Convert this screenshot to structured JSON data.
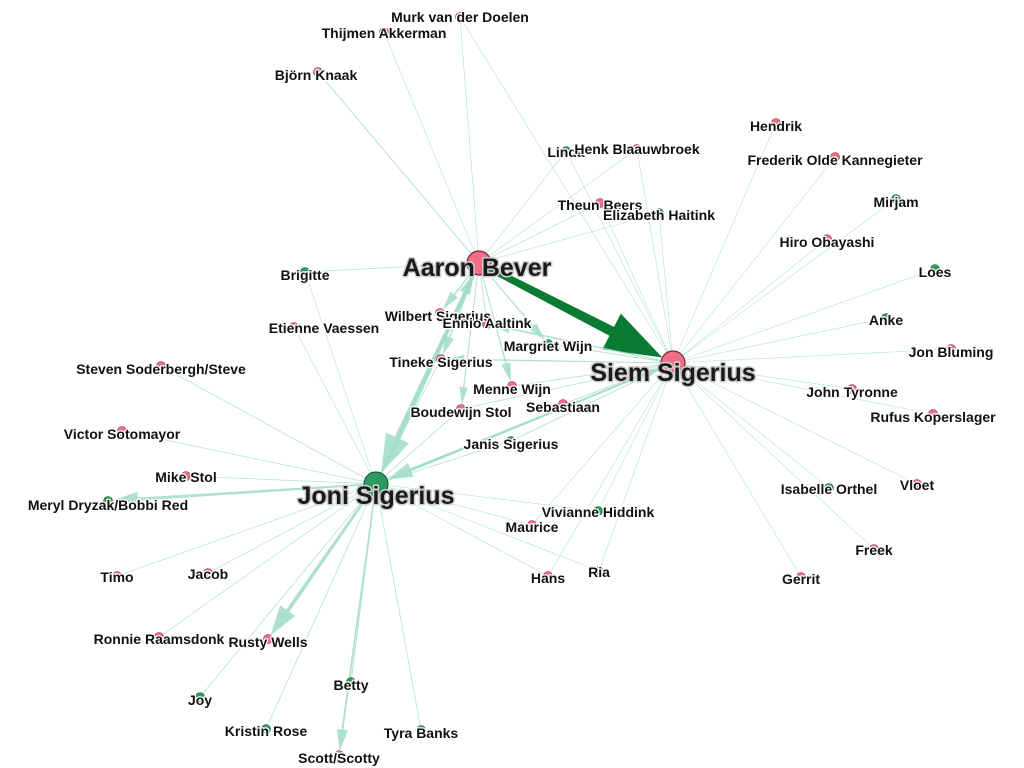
{
  "colors": {
    "female": "#ef6f86",
    "male": "#2e9b5e",
    "edge_light": "#9fdcc4",
    "edge_dark": "#0a7a34",
    "node_stroke": "#7a2a3a"
  },
  "nodes": [
    {
      "id": "siem",
      "label": "Siem Sigerius",
      "group": "female",
      "hub": true
    },
    {
      "id": "joni",
      "label": "Joni Sigerius",
      "group": "male",
      "hub": true
    },
    {
      "id": "aaron",
      "label": "Aaron Bever",
      "group": "female",
      "hub": true
    },
    {
      "id": "murk",
      "label": "Murk van der Doelen",
      "group": "female"
    },
    {
      "id": "thijmen",
      "label": "Thijmen Akkerman",
      "group": "female"
    },
    {
      "id": "bjorn",
      "label": "Björn Knaak",
      "group": "female"
    },
    {
      "id": "linda",
      "label": "Linda",
      "group": "male"
    },
    {
      "id": "henk",
      "label": "Henk Blaauwbroek",
      "group": "female"
    },
    {
      "id": "hendrik",
      "label": "Hendrik",
      "group": "female"
    },
    {
      "id": "frederik",
      "label": "Frederik Olde Kannegieter",
      "group": "female"
    },
    {
      "id": "theun",
      "label": "Theun Beers",
      "group": "female"
    },
    {
      "id": "elizabeth",
      "label": "Elizabeth Haitink",
      "group": "male"
    },
    {
      "id": "mirjam",
      "label": "Mirjam",
      "group": "male"
    },
    {
      "id": "hiro",
      "label": "Hiro Obayashi",
      "group": "female"
    },
    {
      "id": "loes",
      "label": "Loes",
      "group": "male"
    },
    {
      "id": "brigitte",
      "label": "Brigitte",
      "group": "male"
    },
    {
      "id": "etienne",
      "label": "Etienne Vaessen",
      "group": "female"
    },
    {
      "id": "wilbert",
      "label": "Wilbert Sigerius",
      "group": "female"
    },
    {
      "id": "ennio",
      "label": "Ennio Aaltink",
      "group": "female"
    },
    {
      "id": "anke",
      "label": "Anke",
      "group": "male"
    },
    {
      "id": "margriet",
      "label": "Margriet Wijn",
      "group": "male"
    },
    {
      "id": "tineke",
      "label": "Tineke Sigerius",
      "group": "female"
    },
    {
      "id": "jonbluming",
      "label": "Jon Bluming",
      "group": "female"
    },
    {
      "id": "steven",
      "label": "Steven Soderbergh/Steve",
      "group": "female"
    },
    {
      "id": "menne",
      "label": "Menne Wijn",
      "group": "female"
    },
    {
      "id": "johntyronne",
      "label": "John Tyronne",
      "group": "female"
    },
    {
      "id": "boudewijn",
      "label": "Boudewijn Stol",
      "group": "female"
    },
    {
      "id": "sebastiaan",
      "label": "Sebastiaan",
      "group": "female"
    },
    {
      "id": "rufus",
      "label": "Rufus Koperslager",
      "group": "female"
    },
    {
      "id": "victor",
      "label": "Victor Sotomayor",
      "group": "female"
    },
    {
      "id": "janis",
      "label": "Janis Sigerius",
      "group": "male"
    },
    {
      "id": "mike",
      "label": "Mike Stol",
      "group": "female"
    },
    {
      "id": "meryl",
      "label": "Meryl Dryzak/Bobbi Red",
      "group": "male"
    },
    {
      "id": "isabelle",
      "label": "Isabelle Orthel",
      "group": "male"
    },
    {
      "id": "vloet",
      "label": "Vloet",
      "group": "female"
    },
    {
      "id": "vivianne",
      "label": "Vivianne Hiddink",
      "group": "male"
    },
    {
      "id": "maurice",
      "label": "Maurice",
      "group": "female"
    },
    {
      "id": "freek",
      "label": "Freek",
      "group": "female"
    },
    {
      "id": "timo",
      "label": "Timo",
      "group": "female"
    },
    {
      "id": "jacob",
      "label": "Jacob",
      "group": "female"
    },
    {
      "id": "hans",
      "label": "Hans",
      "group": "female"
    },
    {
      "id": "ria",
      "label": "Ria",
      "group": "male"
    },
    {
      "id": "gerrit",
      "label": "Gerrit",
      "group": "female"
    },
    {
      "id": "ronnie",
      "label": "Ronnie Raamsdonk",
      "group": "female"
    },
    {
      "id": "rusty",
      "label": "Rusty Wells",
      "group": "female"
    },
    {
      "id": "betty",
      "label": "Betty",
      "group": "male"
    },
    {
      "id": "joy",
      "label": "Joy",
      "group": "male"
    },
    {
      "id": "kristin",
      "label": "Kristin Rose",
      "group": "male"
    },
    {
      "id": "tyra",
      "label": "Tyra Banks",
      "group": "male"
    },
    {
      "id": "scott",
      "label": "Scott/Scotty",
      "group": "female"
    }
  ],
  "edges": [
    {
      "source": "aaron",
      "target": "siem",
      "weight": 10,
      "dark": true
    },
    {
      "source": "aaron",
      "target": "joni",
      "weight": 6
    },
    {
      "source": "joni",
      "target": "aaron",
      "weight": 2
    },
    {
      "source": "siem",
      "target": "joni",
      "weight": 3
    },
    {
      "source": "joni",
      "target": "siem",
      "weight": 1.5
    },
    {
      "source": "joni",
      "target": "rusty",
      "weight": 4
    },
    {
      "source": "joni",
      "target": "meryl",
      "weight": 3
    },
    {
      "source": "joni",
      "target": "scott",
      "weight": 2
    },
    {
      "source": "joni",
      "target": "betty",
      "weight": 1
    },
    {
      "source": "joni",
      "target": "kristin",
      "weight": 0.8
    },
    {
      "source": "joni",
      "target": "tyra",
      "weight": 0.8
    },
    {
      "source": "joni",
      "target": "joy",
      "weight": 0.8
    },
    {
      "source": "joni",
      "target": "ronnie",
      "weight": 0.7
    },
    {
      "source": "joni",
      "target": "timo",
      "weight": 0.7
    },
    {
      "source": "joni",
      "target": "jacob",
      "weight": 0.7
    },
    {
      "source": "joni",
      "target": "mike",
      "weight": 0.7
    },
    {
      "source": "joni",
      "target": "victor",
      "weight": 0.7
    },
    {
      "source": "joni",
      "target": "steven",
      "weight": 0.8
    },
    {
      "source": "joni",
      "target": "etienne",
      "weight": 0.5
    },
    {
      "source": "joni",
      "target": "brigitte",
      "weight": 0.5
    },
    {
      "source": "joni",
      "target": "maurice",
      "weight": 0.5
    },
    {
      "source": "joni",
      "target": "vivianne",
      "weight": 0.5
    },
    {
      "source": "joni",
      "target": "hans",
      "weight": 0.5
    },
    {
      "source": "joni",
      "target": "ria",
      "weight": 0.5
    },
    {
      "source": "joni",
      "target": "boudewijn",
      "weight": 0.8
    },
    {
      "source": "joni",
      "target": "janis",
      "weight": 0.8
    },
    {
      "source": "joni",
      "target": "tineke",
      "weight": 0.8
    },
    {
      "source": "aaron",
      "target": "murk",
      "weight": 0.6
    },
    {
      "source": "aaron",
      "target": "thijmen",
      "weight": 0.6
    },
    {
      "source": "aaron",
      "target": "bjorn",
      "weight": 1
    },
    {
      "source": "aaron",
      "target": "brigitte",
      "weight": 0.8
    },
    {
      "source": "aaron",
      "target": "linda",
      "weight": 0.6
    },
    {
      "source": "aaron",
      "target": "henk",
      "weight": 0.6
    },
    {
      "source": "aaron",
      "target": "theun",
      "weight": 0.6
    },
    {
      "source": "aaron",
      "target": "elizabeth",
      "weight": 0.6
    },
    {
      "source": "aaron",
      "target": "wilbert",
      "weight": 1.5
    },
    {
      "source": "aaron",
      "target": "ennio",
      "weight": 0.8
    },
    {
      "source": "aaron",
      "target": "tineke",
      "weight": 1.5
    },
    {
      "source": "aaron",
      "target": "menne",
      "weight": 1.5
    },
    {
      "source": "aaron",
      "target": "boudewijn",
      "weight": 1.2
    },
    {
      "source": "aaron",
      "target": "margriet",
      "weight": 1.5
    },
    {
      "source": "siem",
      "target": "murk",
      "weight": 0.5
    },
    {
      "source": "siem",
      "target": "linda",
      "weight": 0.5
    },
    {
      "source": "siem",
      "target": "henk",
      "weight": 0.5
    },
    {
      "source": "siem",
      "target": "hendrik",
      "weight": 0.5
    },
    {
      "source": "siem",
      "target": "frederik",
      "weight": 0.5
    },
    {
      "source": "siem",
      "target": "theun",
      "weight": 0.5
    },
    {
      "source": "siem",
      "target": "elizabeth",
      "weight": 0.5
    },
    {
      "source": "siem",
      "target": "mirjam",
      "weight": 0.5
    },
    {
      "source": "siem",
      "target": "hiro",
      "weight": 0.5
    },
    {
      "source": "siem",
      "target": "loes",
      "weight": 0.5
    },
    {
      "source": "siem",
      "target": "anke",
      "weight": 0.5
    },
    {
      "source": "siem",
      "target": "jonbluming",
      "weight": 0.5
    },
    {
      "source": "siem",
      "target": "johntyronne",
      "weight": 0.5
    },
    {
      "source": "siem",
      "target": "rufus",
      "weight": 0.5
    },
    {
      "source": "siem",
      "target": "isabelle",
      "weight": 0.5
    },
    {
      "source": "siem",
      "target": "vloet",
      "weight": 0.5
    },
    {
      "source": "siem",
      "target": "freek",
      "weight": 0.5
    },
    {
      "source": "siem",
      "target": "gerrit",
      "weight": 0.5
    },
    {
      "source": "siem",
      "target": "ria",
      "weight": 0.5
    },
    {
      "source": "siem",
      "target": "hans",
      "weight": 0.5
    },
    {
      "source": "siem",
      "target": "vivianne",
      "weight": 0.5
    },
    {
      "source": "siem",
      "target": "maurice",
      "weight": 0.5
    },
    {
      "source": "siem",
      "target": "margriet",
      "weight": 1
    },
    {
      "source": "siem",
      "target": "tineke",
      "weight": 1.5
    },
    {
      "source": "siem",
      "target": "ennio",
      "weight": 1.5
    },
    {
      "source": "siem",
      "target": "sebastiaan",
      "weight": 1
    },
    {
      "source": "siem",
      "target": "janis",
      "weight": 1
    },
    {
      "source": "siem",
      "target": "menne",
      "weight": 0.8
    },
    {
      "source": "siem",
      "target": "boudewijn",
      "weight": 0.8
    },
    {
      "source": "siem",
      "target": "wilbert",
      "weight": 0.6
    }
  ]
}
